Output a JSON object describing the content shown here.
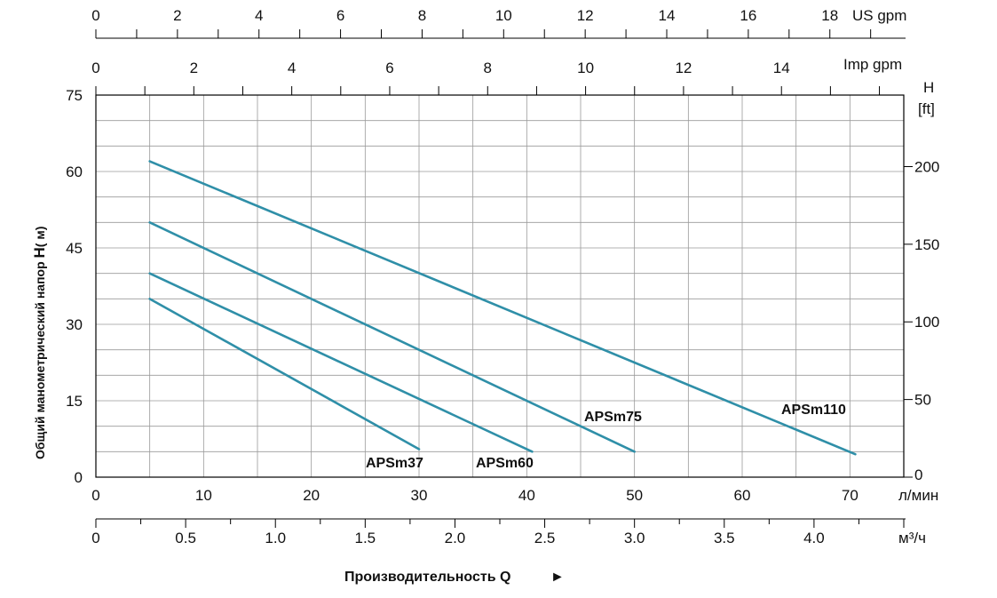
{
  "chart_data": {
    "type": "line",
    "title": "",
    "xlabel": "Производительность Q",
    "xlabel_arrow": "►",
    "ylabel_prefix": "Общий манометрический напор ",
    "ylabel_main": "H",
    "ylabel_suffix": "( м)",
    "x_unit": "л/мин",
    "xlim": [
      0,
      75
    ],
    "ylim": [
      0,
      75
    ],
    "grid": true,
    "x_ticks": [
      "0",
      "10",
      "20",
      "30",
      "40",
      "50",
      "60",
      "70"
    ],
    "y_ticks": [
      "0",
      "15",
      "30",
      "45",
      "60",
      "75"
    ],
    "secondary_axes": {
      "us_gpm": {
        "unit": "US gpm",
        "ticks": [
          "0",
          "2",
          "4",
          "6",
          "8",
          "10",
          "12",
          "14",
          "16",
          "18"
        ]
      },
      "imp_gpm": {
        "unit": "Imp gpm",
        "ticks": [
          "0",
          "2",
          "4",
          "6",
          "8",
          "10",
          "12",
          "14"
        ]
      },
      "m3h": {
        "unit": "м³/ч",
        "ticks": [
          "0",
          "0.5",
          "1.0",
          "1.5",
          "2.0",
          "2.5",
          "3.0",
          "3.5",
          "4.0"
        ]
      },
      "h_ft": {
        "unit_line1": "H",
        "unit_line2": "[ft]",
        "ticks": [
          "0",
          "50",
          "100",
          "150",
          "200"
        ]
      }
    },
    "series": [
      {
        "name": "APSm37",
        "x": [
          5,
          30
        ],
        "y": [
          35,
          5.5
        ]
      },
      {
        "name": "APSm60",
        "x": [
          5,
          40.5
        ],
        "y": [
          40,
          5
        ]
      },
      {
        "name": "APSm75",
        "x": [
          5,
          50
        ],
        "y": [
          50,
          5
        ]
      },
      {
        "name": "APSm110",
        "x": [
          5,
          70.5
        ],
        "y": [
          62,
          4.5
        ]
      }
    ],
    "line_color": "#2f8fa8"
  }
}
